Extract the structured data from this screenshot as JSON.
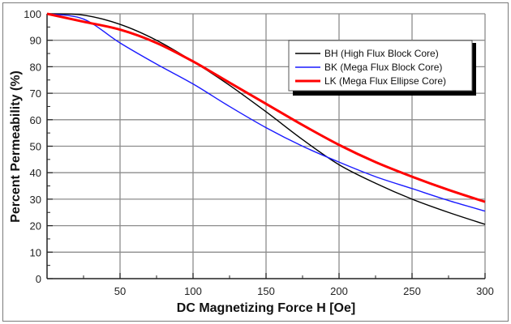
{
  "chart_data": {
    "type": "line",
    "title": "",
    "xlabel": "DC Magnetizing Force H [Oe]",
    "ylabel": "Percent Permeability (%)",
    "xlim": [
      0,
      300
    ],
    "ylim": [
      0,
      100
    ],
    "xticks": [
      50,
      100,
      150,
      200,
      250,
      300
    ],
    "xtick_labels": [
      "50",
      "100",
      "150",
      "200",
      "250",
      "300"
    ],
    "yticks": [
      0,
      10,
      20,
      30,
      40,
      50,
      60,
      70,
      80,
      90,
      100
    ],
    "ytick_labels": [
      "0",
      "10",
      "20",
      "30",
      "40",
      "50",
      "60",
      "70",
      "80",
      "90",
      "100"
    ],
    "grid": true,
    "legend_position": "top-right",
    "x": [
      0,
      25,
      50,
      75,
      100,
      125,
      150,
      175,
      200,
      225,
      250,
      275,
      300
    ],
    "series": [
      {
        "name": "BH (High Flux Block Core)",
        "color": "#000000",
        "values": [
          100,
          99.5,
          96,
          90,
          82,
          73,
          63,
          52.5,
          43,
          36,
          30,
          25,
          20.5
        ]
      },
      {
        "name": "BK (Mega Flux Block Core)",
        "color": "#1a1aff",
        "values": [
          100,
          98,
          89,
          81,
          73.5,
          65,
          57,
          50,
          44,
          38.5,
          34,
          29.5,
          25.5
        ]
      },
      {
        "name": "LK (Mega Flux Ellipse Core)",
        "color": "#ff0000",
        "values": [
          100,
          97,
          94,
          89,
          82,
          74,
          66,
          58,
          50.5,
          44,
          38.5,
          33.5,
          29
        ]
      }
    ]
  }
}
